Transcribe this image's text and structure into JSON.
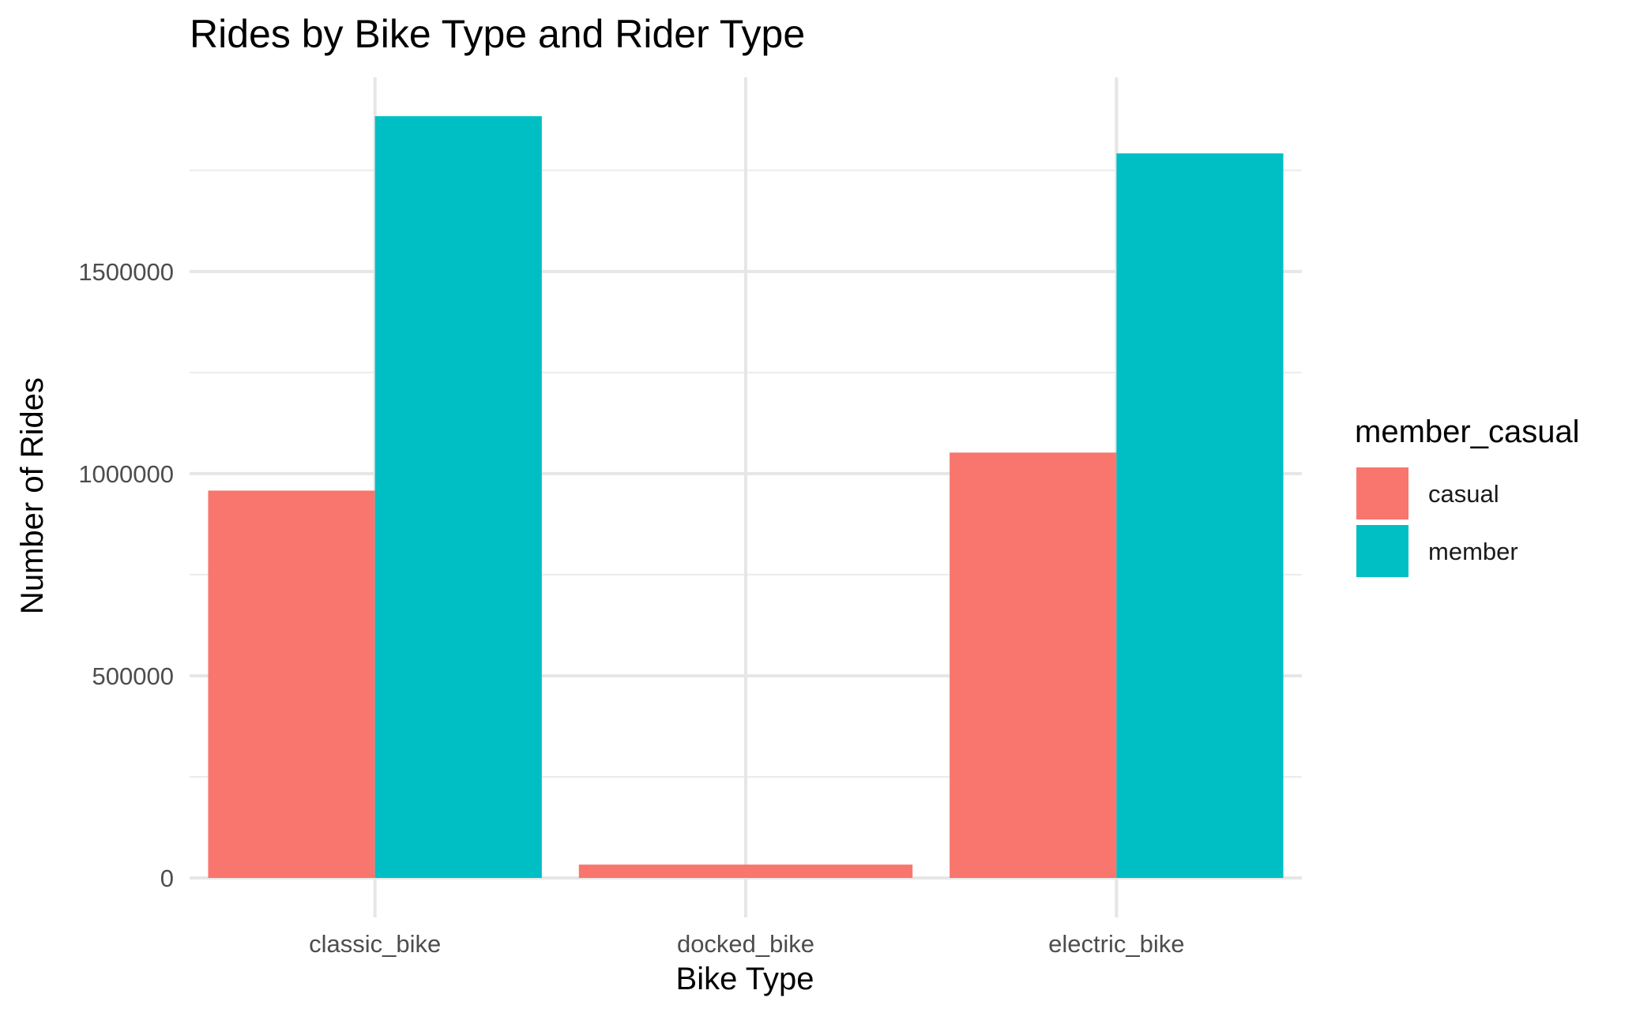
{
  "chart_data": {
    "type": "bar",
    "title": "Rides by Bike Type and Rider Type",
    "xlabel": "Bike Type",
    "ylabel": "Number of Rides",
    "categories": [
      "classic_bike",
      "docked_bike",
      "electric_bike"
    ],
    "series": [
      {
        "name": "casual",
        "color": "#F8766D",
        "values": [
          958000,
          33000,
          1052000
        ]
      },
      {
        "name": "member",
        "color": "#00BFC4",
        "values": [
          1884000,
          null,
          1792000
        ]
      }
    ],
    "ylim": [
      0,
      1980000
    ],
    "yticks": [
      0,
      500000,
      1000000,
      1500000
    ],
    "ytick_labels": [
      "0",
      "500000",
      "1000000",
      "1500000"
    ],
    "grid": true,
    "legend": {
      "title": "member_casual",
      "position": "right"
    }
  }
}
